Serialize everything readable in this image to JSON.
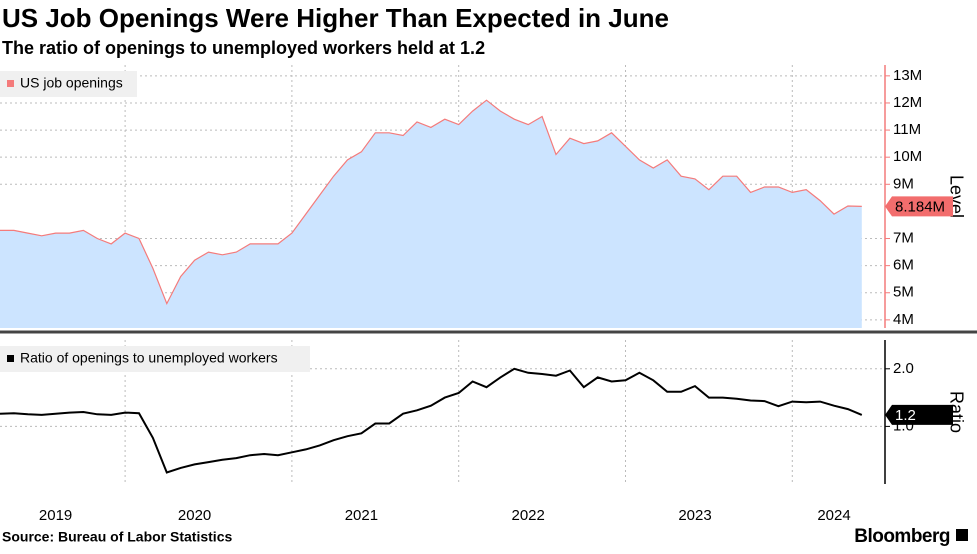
{
  "title": "US Job Openings Were Higher Than Expected in June",
  "subtitle": "The ratio of openings to unemployed workers held at 1.2",
  "source": "Source: Bureau of Labor Statistics",
  "brand": "Bloomberg",
  "chart_data": [
    {
      "type": "area",
      "categories": [
        null,
        null,
        null,
        null,
        "2019",
        null,
        null,
        null,
        null,
        null,
        null,
        null,
        null,
        null,
        "2020",
        null,
        null,
        null,
        null,
        null,
        null,
        null,
        null,
        null,
        null,
        null,
        "2021",
        null,
        null,
        null,
        null,
        null,
        null,
        null,
        null,
        null,
        null,
        null,
        "2022",
        null,
        null,
        null,
        null,
        null,
        null,
        null,
        null,
        null,
        null,
        null,
        "2023",
        null,
        null,
        null,
        null,
        null,
        null,
        null,
        null,
        null,
        "2024",
        null,
        null
      ],
      "series": [
        {
          "name": "US job openings",
          "color": "#f47b7b",
          "fill": "#cce4ff",
          "values": [
            7.3,
            7.3,
            7.2,
            7.1,
            7.2,
            7.2,
            7.3,
            7.0,
            6.8,
            7.2,
            7.0,
            5.9,
            4.6,
            5.6,
            6.2,
            6.5,
            6.4,
            6.5,
            6.8,
            6.8,
            6.8,
            7.2,
            7.9,
            8.6,
            9.3,
            9.9,
            10.2,
            10.9,
            10.9,
            10.8,
            11.3,
            11.1,
            11.4,
            11.2,
            11.7,
            12.1,
            11.7,
            11.4,
            11.2,
            11.5,
            10.1,
            10.7,
            10.5,
            10.6,
            10.9,
            10.4,
            9.9,
            9.6,
            9.9,
            9.3,
            9.2,
            8.8,
            9.3,
            9.3,
            8.7,
            8.9,
            8.9,
            8.7,
            8.8,
            8.4,
            7.9,
            8.2,
            8.184
          ],
          "value_labels": [
            null,
            null,
            null,
            null,
            null,
            null,
            null,
            null,
            null,
            null,
            null,
            null,
            null,
            null,
            null,
            null,
            null,
            null,
            null,
            null,
            null,
            null,
            null,
            null,
            null,
            null,
            null,
            null,
            null,
            null,
            null,
            null,
            null,
            null,
            null,
            null,
            null,
            null,
            null,
            null,
            null,
            null,
            null,
            null,
            null,
            null,
            null,
            null,
            null,
            null,
            null,
            null,
            null,
            null,
            null,
            null,
            null,
            null,
            null,
            null,
            null,
            null,
            "8.184M"
          ]
        }
      ],
      "ylabel": "Level",
      "ylim": [
        3.7,
        13.4
      ],
      "yticks": [
        {
          "value": 4,
          "label": "4M"
        },
        {
          "value": 5,
          "label": "5M"
        },
        {
          "value": 6,
          "label": "6M"
        },
        {
          "value": 7,
          "label": "7M"
        },
        {
          "value": 9,
          "label": "9M"
        },
        {
          "value": 10,
          "label": "10M"
        },
        {
          "value": 11,
          "label": "11M"
        },
        {
          "value": 12,
          "label": "12M"
        },
        {
          "value": 13,
          "label": "13M"
        }
      ],
      "grid": true
    },
    {
      "type": "line",
      "series": [
        {
          "name": "Ratio of openings to unemployed workers",
          "color": "#000000",
          "values": [
            1.22,
            1.23,
            1.21,
            1.2,
            1.22,
            1.24,
            1.25,
            1.21,
            1.2,
            1.24,
            1.23,
            0.8,
            0.2,
            0.28,
            0.34,
            0.38,
            0.42,
            0.45,
            0.5,
            0.52,
            0.5,
            0.55,
            0.6,
            0.67,
            0.76,
            0.83,
            0.88,
            1.05,
            1.05,
            1.22,
            1.28,
            1.36,
            1.5,
            1.58,
            1.78,
            1.68,
            1.85,
            2.0,
            1.93,
            1.91,
            1.88,
            1.97,
            1.68,
            1.85,
            1.78,
            1.8,
            1.93,
            1.8,
            1.6,
            1.6,
            1.7,
            1.5,
            1.5,
            1.48,
            1.45,
            1.44,
            1.35,
            1.43,
            1.42,
            1.43,
            1.36,
            1.3,
            1.2
          ]
        }
      ],
      "ylabel": "Ratio",
      "ylim": [
        0.0,
        2.5
      ],
      "yticks": [
        {
          "value": 1,
          "label": "1.0"
        },
        {
          "value": 2,
          "label": "2.0"
        }
      ],
      "grid": true
    }
  ]
}
